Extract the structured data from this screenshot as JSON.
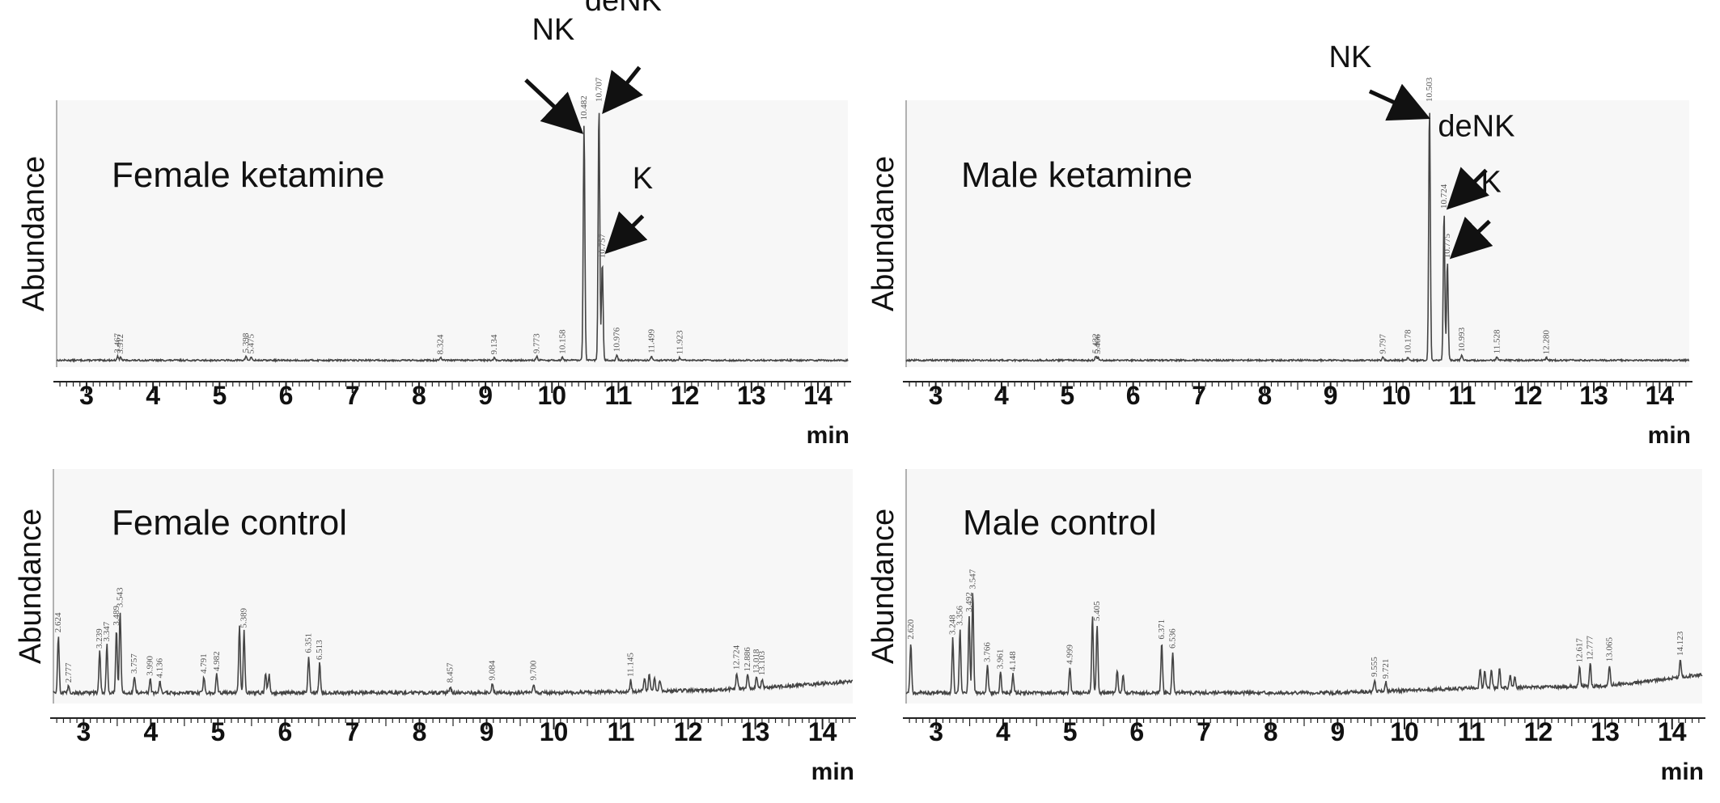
{
  "chart_data": [
    {
      "type": "line",
      "title": "Female ketamine",
      "ylabel": "Abundance",
      "xunit": "min",
      "xticks": [
        3,
        4,
        5,
        6,
        7,
        8,
        9,
        10,
        11,
        12,
        13,
        14
      ],
      "xlim": [
        2.55,
        14.45
      ],
      "ylim": [
        0,
        100
      ],
      "baseline_noise": 0.6,
      "peaks": [
        {
          "rt": 3.467,
          "h": 1.5
        },
        {
          "rt": 3.512,
          "h": 1.2
        },
        {
          "rt": 5.398,
          "h": 1.6
        },
        {
          "rt": 5.475,
          "h": 1.2
        },
        {
          "rt": 8.324,
          "h": 1.0
        },
        {
          "rt": 9.134,
          "h": 1.0
        },
        {
          "rt": 9.773,
          "h": 1.4
        },
        {
          "rt": 10.158,
          "h": 1.2
        },
        {
          "rt": 10.482,
          "h": 91
        },
        {
          "rt": 10.707,
          "h": 98
        },
        {
          "rt": 10.757,
          "h": 38
        },
        {
          "rt": 10.976,
          "h": 2.0
        },
        {
          "rt": 11.499,
          "h": 1.5
        },
        {
          "rt": 11.923,
          "h": 1.0
        }
      ],
      "peak_labels": [
        {
          "rt": 3.467,
          "text": "3.467"
        },
        {
          "rt": 3.512,
          "text": "3.512"
        },
        {
          "rt": 5.398,
          "text": "5.398"
        },
        {
          "rt": 5.475,
          "text": "5.475"
        },
        {
          "rt": 8.324,
          "text": "8.324"
        },
        {
          "rt": 9.134,
          "text": "9.134"
        },
        {
          "rt": 9.773,
          "text": "9.773"
        },
        {
          "rt": 10.158,
          "text": "10.158"
        },
        {
          "rt": 10.482,
          "text": "10.482"
        },
        {
          "rt": 10.707,
          "text": "10.707"
        },
        {
          "rt": 10.757,
          "text": "10.757"
        },
        {
          "rt": 10.976,
          "text": "10.976"
        },
        {
          "rt": 11.499,
          "text": "11.499"
        },
        {
          "rt": 11.923,
          "text": "11.923"
        }
      ],
      "annotations": [
        {
          "label": "NK",
          "rt": 10.482,
          "y": 91
        },
        {
          "label": "deNK",
          "rt": 10.707,
          "y": 99
        },
        {
          "label": "K",
          "rt": 10.757,
          "y": 45
        }
      ]
    },
    {
      "type": "line",
      "title": "Male ketamine",
      "ylabel": "Abundance",
      "xunit": "min",
      "xticks": [
        3,
        4,
        5,
        6,
        7,
        8,
        9,
        10,
        11,
        12,
        13,
        14
      ],
      "xlim": [
        2.55,
        14.45
      ],
      "ylim": [
        0,
        100
      ],
      "baseline_noise": 0.6,
      "peaks": [
        {
          "rt": 5.432,
          "h": 1.4
        },
        {
          "rt": 5.466,
          "h": 1.1
        },
        {
          "rt": 9.797,
          "h": 1.2
        },
        {
          "rt": 10.178,
          "h": 1.2
        },
        {
          "rt": 10.503,
          "h": 98
        },
        {
          "rt": 10.724,
          "h": 57
        },
        {
          "rt": 10.775,
          "h": 38
        },
        {
          "rt": 10.993,
          "h": 2.0
        },
        {
          "rt": 11.528,
          "h": 1.3
        },
        {
          "rt": 12.28,
          "h": 1.0
        }
      ],
      "peak_labels": [
        {
          "rt": 5.432,
          "text": "5.432"
        },
        {
          "rt": 5.466,
          "text": "5.466"
        },
        {
          "rt": 9.797,
          "text": "9.797"
        },
        {
          "rt": 10.178,
          "text": "10.178"
        },
        {
          "rt": 10.503,
          "text": "10.503"
        },
        {
          "rt": 10.724,
          "text": "10.724"
        },
        {
          "rt": 10.775,
          "text": "10.775"
        },
        {
          "rt": 10.993,
          "text": "10.993"
        },
        {
          "rt": 11.528,
          "text": "11.528"
        },
        {
          "rt": 12.28,
          "text": "12.280"
        }
      ],
      "annotations": [
        {
          "label": "NK",
          "rt": 10.503,
          "y": 96
        },
        {
          "label": "deNK",
          "rt": 10.724,
          "y": 62
        },
        {
          "label": "K",
          "rt": 10.775,
          "y": 43
        }
      ]
    },
    {
      "type": "line",
      "title": "Female control",
      "ylabel": "Abundance",
      "xunit": "min",
      "xticks": [
        3,
        4,
        5,
        6,
        7,
        8,
        9,
        10,
        11,
        12,
        13,
        14
      ],
      "xlim": [
        2.55,
        14.45
      ],
      "ylim": [
        0,
        100
      ],
      "baseline_noise": 1.5,
      "drift": [
        [
          2.55,
          4
        ],
        [
          10,
          4
        ],
        [
          12,
          5
        ],
        [
          13,
          6
        ],
        [
          14.45,
          9
        ]
      ],
      "peaks": [
        {
          "rt": 2.624,
          "h": 25
        },
        {
          "rt": 2.777,
          "h": 3
        },
        {
          "rt": 3.239,
          "h": 18
        },
        {
          "rt": 3.347,
          "h": 21
        },
        {
          "rt": 3.489,
          "h": 28
        },
        {
          "rt": 3.543,
          "h": 36
        },
        {
          "rt": 3.757,
          "h": 7
        },
        {
          "rt": 3.99,
          "h": 6
        },
        {
          "rt": 4.136,
          "h": 5
        },
        {
          "rt": 4.791,
          "h": 7
        },
        {
          "rt": 4.982,
          "h": 8
        },
        {
          "rt": 5.32,
          "h": 30
        },
        {
          "rt": 5.389,
          "h": 27
        },
        {
          "rt": 5.71,
          "h": 9
        },
        {
          "rt": 5.76,
          "h": 8
        },
        {
          "rt": 6.351,
          "h": 16
        },
        {
          "rt": 6.513,
          "h": 13
        },
        {
          "rt": 8.457,
          "h": 3
        },
        {
          "rt": 9.084,
          "h": 4
        },
        {
          "rt": 9.7,
          "h": 4
        },
        {
          "rt": 11.145,
          "h": 5
        },
        {
          "rt": 11.35,
          "h": 6
        },
        {
          "rt": 11.42,
          "h": 7
        },
        {
          "rt": 11.5,
          "h": 6
        },
        {
          "rt": 11.58,
          "h": 5
        },
        {
          "rt": 12.724,
          "h": 7
        },
        {
          "rt": 12.886,
          "h": 6
        },
        {
          "rt": 13.018,
          "h": 5
        },
        {
          "rt": 13.103,
          "h": 4
        }
      ],
      "peak_labels": [
        {
          "rt": 2.624,
          "text": "2.624"
        },
        {
          "rt": 2.777,
          "text": "2.777"
        },
        {
          "rt": 3.239,
          "text": "3.239"
        },
        {
          "rt": 3.347,
          "text": "3.347"
        },
        {
          "rt": 3.489,
          "text": "3.489"
        },
        {
          "rt": 3.543,
          "text": "3.543"
        },
        {
          "rt": 3.757,
          "text": "3.757"
        },
        {
          "rt": 3.99,
          "text": "3.990"
        },
        {
          "rt": 4.136,
          "text": "4.136"
        },
        {
          "rt": 4.791,
          "text": "4.791"
        },
        {
          "rt": 4.982,
          "text": "4.982"
        },
        {
          "rt": 5.389,
          "text": "5.389"
        },
        {
          "rt": 6.351,
          "text": "6.351"
        },
        {
          "rt": 6.513,
          "text": "6.513"
        },
        {
          "rt": 8.457,
          "text": "8.457"
        },
        {
          "rt": 9.084,
          "text": "9.084"
        },
        {
          "rt": 9.7,
          "text": "9.700"
        },
        {
          "rt": 11.145,
          "text": "11.145"
        },
        {
          "rt": 12.724,
          "text": "12.724"
        },
        {
          "rt": 12.886,
          "text": "12.886"
        },
        {
          "rt": 13.018,
          "text": "13.018"
        },
        {
          "rt": 13.103,
          "text": "13.103"
        }
      ],
      "annotations": []
    },
    {
      "type": "line",
      "title": "Male control",
      "ylabel": "Abundance",
      "xunit": "min",
      "xticks": [
        3,
        4,
        5,
        6,
        7,
        8,
        9,
        10,
        11,
        12,
        13,
        14
      ],
      "xlim": [
        2.55,
        14.45
      ],
      "ylim": [
        0,
        100
      ],
      "baseline_noise": 1.5,
      "drift": [
        [
          2.55,
          4
        ],
        [
          9,
          4
        ],
        [
          11,
          6
        ],
        [
          13,
          7
        ],
        [
          13.9,
          10
        ],
        [
          14.45,
          12
        ]
      ],
      "peaks": [
        {
          "rt": 2.62,
          "h": 22
        },
        {
          "rt": 3.248,
          "h": 24
        },
        {
          "rt": 3.356,
          "h": 28
        },
        {
          "rt": 3.492,
          "h": 34
        },
        {
          "rt": 3.547,
          "h": 44
        },
        {
          "rt": 3.766,
          "h": 12
        },
        {
          "rt": 3.961,
          "h": 9
        },
        {
          "rt": 4.148,
          "h": 8
        },
        {
          "rt": 4.999,
          "h": 11
        },
        {
          "rt": 5.336,
          "h": 34
        },
        {
          "rt": 5.405,
          "h": 30
        },
        {
          "rt": 5.705,
          "h": 10
        },
        {
          "rt": 5.794,
          "h": 8
        },
        {
          "rt": 6.371,
          "h": 22
        },
        {
          "rt": 6.536,
          "h": 18
        },
        {
          "rt": 9.555,
          "h": 5
        },
        {
          "rt": 9.721,
          "h": 4
        },
        {
          "rt": 11.13,
          "h": 9
        },
        {
          "rt": 11.2,
          "h": 8
        },
        {
          "rt": 11.3,
          "h": 8
        },
        {
          "rt": 11.42,
          "h": 9
        },
        {
          "rt": 11.58,
          "h": 6
        },
        {
          "rt": 11.65,
          "h": 5
        },
        {
          "rt": 12.617,
          "h": 9
        },
        {
          "rt": 12.777,
          "h": 10
        },
        {
          "rt": 13.065,
          "h": 9
        },
        {
          "rt": 14.123,
          "h": 8
        }
      ],
      "peak_labels": [
        {
          "rt": 2.62,
          "text": "2.620"
        },
        {
          "rt": 3.248,
          "text": "3.248"
        },
        {
          "rt": 3.356,
          "text": "3.356"
        },
        {
          "rt": 3.492,
          "text": "3.492"
        },
        {
          "rt": 3.547,
          "text": "3.547"
        },
        {
          "rt": 3.766,
          "text": "3.766"
        },
        {
          "rt": 3.961,
          "text": "3.961"
        },
        {
          "rt": 4.148,
          "text": "4.148"
        },
        {
          "rt": 4.999,
          "text": "4.999"
        },
        {
          "rt": 5.405,
          "text": "5.405"
        },
        {
          "rt": 6.371,
          "text": "6.371"
        },
        {
          "rt": 6.536,
          "text": "6.536"
        },
        {
          "rt": 9.555,
          "text": "9.555"
        },
        {
          "rt": 9.721,
          "text": "9.721"
        },
        {
          "rt": 12.617,
          "text": "12.617"
        },
        {
          "rt": 12.777,
          "text": "12.777"
        },
        {
          "rt": 13.065,
          "text": "13.065"
        },
        {
          "rt": 14.123,
          "text": "14.123"
        }
      ],
      "annotations": []
    }
  ]
}
